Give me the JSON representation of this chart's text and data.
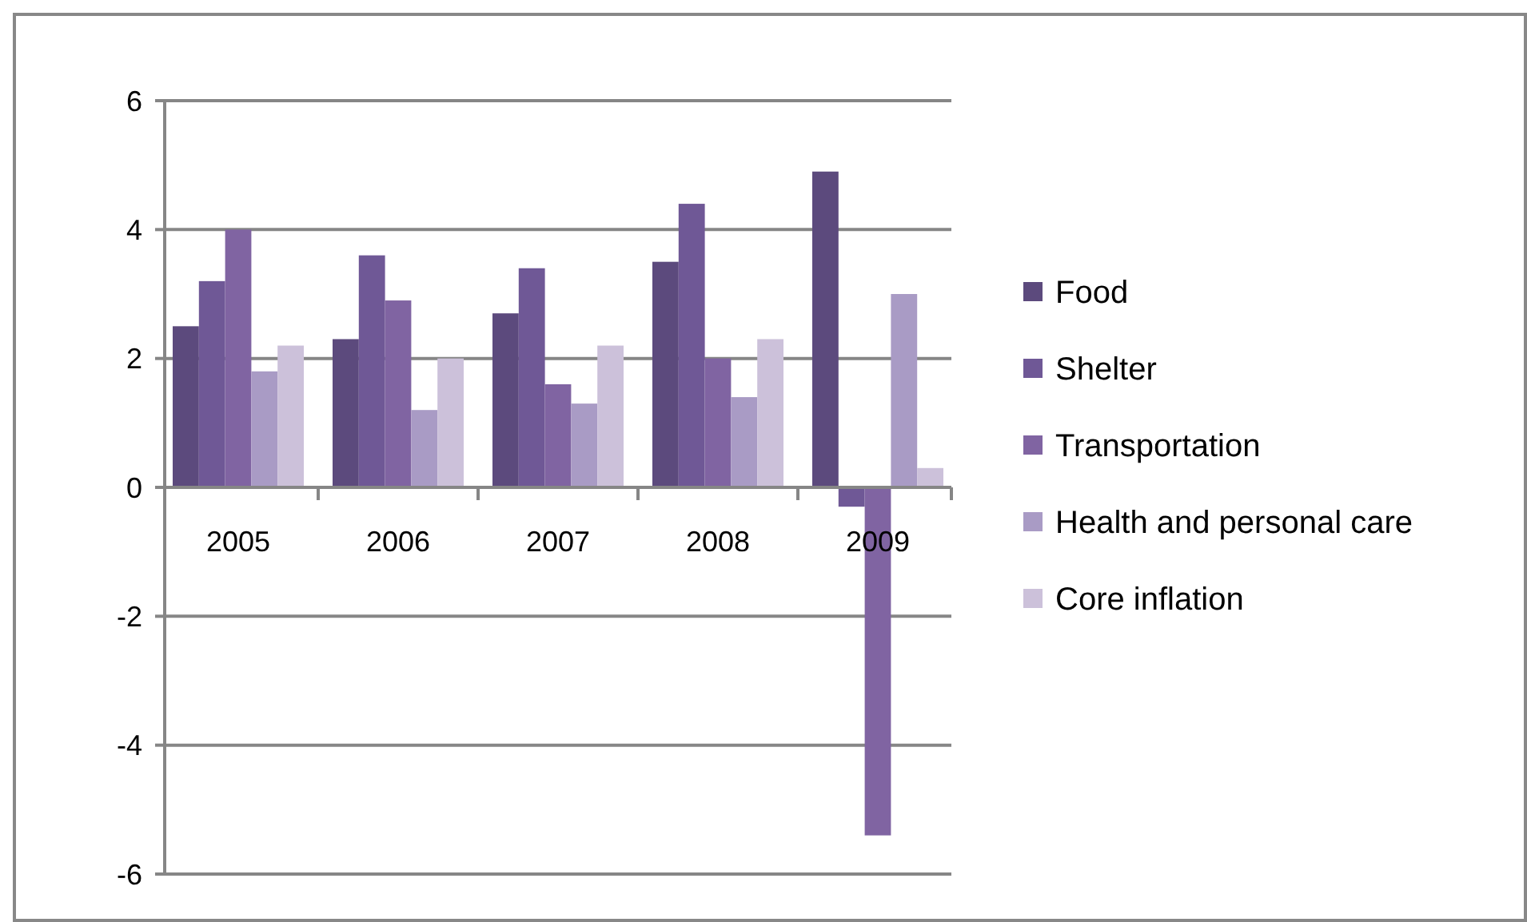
{
  "chart_data": {
    "type": "bar",
    "categories": [
      "2005",
      "2006",
      "2007",
      "2008",
      "2009"
    ],
    "series": [
      {
        "name": "Food",
        "color": "#5c4a7d",
        "values": [
          2.5,
          2.3,
          2.7,
          3.5,
          4.9
        ]
      },
      {
        "name": "Shelter",
        "color": "#6f5896",
        "values": [
          3.2,
          3.6,
          3.4,
          4.4,
          -0.3
        ]
      },
      {
        "name": "Transportation",
        "color": "#8064a2",
        "values": [
          4.0,
          2.9,
          1.6,
          2.0,
          -5.4
        ]
      },
      {
        "name": "Health and personal care",
        "color": "#a99bc5",
        "values": [
          1.8,
          1.2,
          1.3,
          1.4,
          3.0
        ]
      },
      {
        "name": "Core inflation",
        "color": "#ccc1da",
        "values": [
          2.2,
          2.0,
          2.2,
          2.3,
          0.3
        ]
      }
    ],
    "ylim": [
      -6,
      6
    ],
    "yticks": [
      -6,
      -4,
      -2,
      0,
      2,
      4,
      6
    ],
    "grid": "y",
    "legend": "right"
  }
}
